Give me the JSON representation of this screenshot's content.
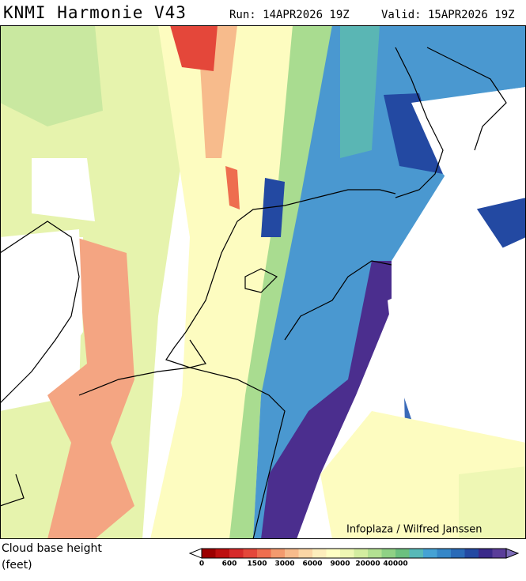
{
  "header": {
    "title": "KNMI Harmonie V43",
    "run": "Run: 14APR2026 19Z",
    "valid": "Valid: 15APR2026 19Z"
  },
  "credit": "Infoplaza / Wilfred Janssen",
  "legend": {
    "title": "Cloud base height",
    "unit": "(feet)",
    "colors": [
      "#7a0000",
      "#9c0000",
      "#bd0f0f",
      "#d62a2a",
      "#e4473a",
      "#ee6e4f",
      "#f39a6e",
      "#f7bb8c",
      "#fbd6a6",
      "#fdeebc",
      "#ffffc4",
      "#eef7b4",
      "#d3eda0",
      "#b3e092",
      "#8fd185",
      "#6cc07f",
      "#57b9b8",
      "#45a2d4",
      "#3587c8",
      "#2a6bb8",
      "#2349a2",
      "#3a2a8a",
      "#5a3d99",
      "#7c6cb8"
    ],
    "ticks": [
      0,
      600,
      1500,
      3000,
      6000,
      9000,
      20000,
      40000
    ]
  }
}
